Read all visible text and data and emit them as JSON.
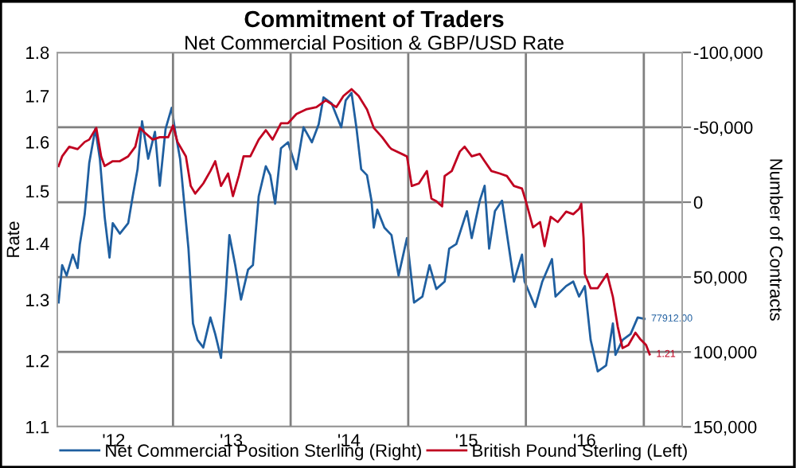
{
  "chart_data": {
    "type": "line",
    "title": "Commitment of Traders",
    "subtitle": "Net Commercial Position & GBP/USD Rate",
    "ylabel": "Rate",
    "y2label": "Number of Contracts",
    "series": [
      {
        "name": "Net Commercial Position Sterling (Right)",
        "color": "#1f5fa0",
        "axis": "y2",
        "x": [
          "2012-01-12",
          "2012-01-23",
          "2012-02-06",
          "2012-02-25",
          "2012-03-11",
          "2012-03-18",
          "2012-04-02",
          "2012-04-16",
          "2012-05-05",
          "2012-05-19",
          "2012-06-03",
          "2012-06-18",
          "2012-06-28",
          "2012-07-20",
          "2012-08-15",
          "2012-08-29",
          "2012-09-13",
          "2012-09-27",
          "2012-10-16",
          "2012-11-06",
          "2012-11-21",
          "2012-12-09",
          "2012-12-28",
          "2013-01-08",
          "2013-01-23",
          "2013-02-18",
          "2013-03-04",
          "2013-03-18",
          "2013-04-05",
          "2013-04-27",
          "2013-05-12",
          "2013-05-30",
          "2013-06-14",
          "2013-06-25",
          "2013-07-13",
          "2013-07-31",
          "2013-08-22",
          "2013-09-06",
          "2013-09-24",
          "2013-10-16",
          "2013-10-30",
          "2013-11-14",
          "2013-12-02",
          "2013-12-24",
          "2014-01-19",
          "2014-02-10",
          "2014-03-08",
          "2014-03-29",
          "2014-04-13",
          "2014-05-08",
          "2014-06-07",
          "2014-06-21",
          "2014-07-09",
          "2014-07-24",
          "2014-08-08",
          "2014-08-26",
          "2014-09-09",
          "2014-09-16",
          "2014-09-27",
          "2014-10-19",
          "2014-11-10",
          "2014-12-02",
          "2014-12-28",
          "2015-01-19",
          "2015-02-14",
          "2015-03-08",
          "2015-03-29",
          "2015-04-24",
          "2015-05-08",
          "2015-05-30",
          "2015-07-02",
          "2015-07-17",
          "2015-08-11",
          "2015-08-26",
          "2015-09-09",
          "2015-09-27",
          "2015-10-19",
          "2015-11-03",
          "2015-11-25",
          "2015-12-20",
          "2015-12-28",
          "2016-01-30",
          "2016-02-21",
          "2016-03-22",
          "2016-04-02",
          "2016-05-05",
          "2016-05-27",
          "2016-06-14",
          "2016-07-02",
          "2016-07-20",
          "2016-08-11",
          "2016-09-06",
          "2016-09-27",
          "2016-10-05",
          "2016-10-27",
          "2016-11-21",
          "2016-12-13",
          "2017-01-03"
        ],
        "values": [
          67000,
          42000,
          49000,
          35000,
          44000,
          28000,
          8000,
          -26000,
          -49000,
          -29000,
          10000,
          37000,
          14000,
          21000,
          14000,
          -4000,
          -22000,
          -54000,
          -29000,
          -47000,
          -11000,
          -49000,
          -63000,
          -47000,
          -29000,
          31000,
          81000,
          92000,
          97000,
          77000,
          88000,
          104000,
          60000,
          22000,
          42000,
          65000,
          45000,
          42000,
          -4000,
          -24000,
          -18000,
          1000,
          -36000,
          -40000,
          -22000,
          -50000,
          -40000,
          -52000,
          -70000,
          -66000,
          -50000,
          -68000,
          -73000,
          -50000,
          -22000,
          -18000,
          -1000,
          17000,
          5000,
          17000,
          22000,
          49000,
          24000,
          67000,
          63000,
          42000,
          58000,
          53000,
          31000,
          28000,
          6000,
          24000,
          -1000,
          -11000,
          31000,
          6000,
          -1000,
          21000,
          53000,
          35000,
          53000,
          70000,
          53000,
          38000,
          63000,
          56000,
          53000,
          63000,
          56000,
          92000,
          113000,
          109000,
          81000,
          102000,
          92000,
          88000,
          77000,
          77912
        ],
        "value_labels": [
          null,
          null,
          null,
          null,
          null,
          null,
          null,
          null,
          null,
          null,
          null,
          null,
          null,
          null,
          null,
          null,
          null,
          null,
          null,
          null,
          null,
          null,
          null,
          null,
          null,
          null,
          null,
          null,
          null,
          null,
          null,
          null,
          null,
          null,
          null,
          null,
          null,
          null,
          null,
          null,
          null,
          null,
          null,
          null,
          null,
          null,
          null,
          null,
          null,
          null,
          null,
          null,
          null,
          null,
          null,
          null,
          null,
          null,
          null,
          null,
          null,
          null,
          null,
          null,
          null,
          null,
          null,
          null,
          null,
          null,
          null,
          null,
          null,
          null,
          null,
          null,
          null,
          null,
          null,
          null,
          null,
          null,
          null,
          null,
          null,
          null,
          null,
          null,
          null,
          null,
          null,
          null,
          null,
          null,
          null,
          null,
          null,
          "77912.00"
        ]
      },
      {
        "name": "British Pound Sterling (Left)",
        "color": "#c00020",
        "x": [
          "2012-01-12",
          "2012-01-23",
          "2012-02-14",
          "2012-03-11",
          "2012-04-02",
          "2012-04-16",
          "2012-05-08",
          "2012-05-23",
          "2012-06-03",
          "2012-06-28",
          "2012-07-20",
          "2012-08-15",
          "2012-09-06",
          "2012-09-20",
          "2012-10-05",
          "2012-10-30",
          "2012-11-21",
          "2012-12-17",
          "2013-01-01",
          "2013-01-15",
          "2013-02-10",
          "2013-02-25",
          "2013-03-11",
          "2013-04-05",
          "2013-04-27",
          "2013-05-12",
          "2013-05-30",
          "2013-06-21",
          "2013-07-06",
          "2013-07-24",
          "2013-08-08",
          "2013-08-29",
          "2013-09-24",
          "2013-10-16",
          "2013-11-06",
          "2013-12-02",
          "2013-12-24",
          "2014-01-19",
          "2014-02-18",
          "2014-03-22",
          "2014-04-20",
          "2014-05-23",
          "2014-06-14",
          "2014-07-09",
          "2014-07-31",
          "2014-08-26",
          "2014-09-16",
          "2014-10-12",
          "2014-11-03",
          "2014-11-10",
          "2014-12-28",
          "2015-01-12",
          "2015-02-03",
          "2015-02-28",
          "2015-03-14",
          "2015-03-29",
          "2015-04-16",
          "2015-04-24",
          "2015-05-16",
          "2015-06-10",
          "2015-06-25",
          "2015-07-17",
          "2015-08-11",
          "2015-08-26",
          "2015-09-16",
          "2015-10-12",
          "2015-11-03",
          "2015-11-25",
          "2015-12-20",
          "2016-01-01",
          "2016-01-23",
          "2016-02-14",
          "2016-02-28",
          "2016-03-18",
          "2016-04-09",
          "2016-05-05",
          "2016-05-27",
          "2016-06-14",
          "2016-06-21",
          "2016-06-28",
          "2016-07-02",
          "2016-07-20",
          "2016-08-11",
          "2016-09-09",
          "2016-09-27",
          "2016-10-12",
          "2016-10-27",
          "2016-11-14",
          "2016-12-06",
          "2016-12-20",
          "2017-01-08",
          "2017-01-19"
        ],
        "values": [
          1.55,
          1.57,
          1.59,
          1.585,
          1.6,
          1.605,
          1.63,
          1.57,
          1.55,
          1.56,
          1.56,
          1.57,
          1.59,
          1.63,
          1.62,
          1.605,
          1.61,
          1.61,
          1.635,
          1.6,
          1.57,
          1.51,
          1.495,
          1.515,
          1.54,
          1.56,
          1.51,
          1.535,
          1.49,
          1.53,
          1.57,
          1.57,
          1.605,
          1.625,
          1.605,
          1.64,
          1.64,
          1.66,
          1.67,
          1.675,
          1.69,
          1.675,
          1.7,
          1.715,
          1.7,
          1.67,
          1.63,
          1.61,
          1.59,
          1.585,
          1.57,
          1.51,
          1.515,
          1.54,
          1.485,
          1.48,
          1.47,
          1.53,
          1.54,
          1.58,
          1.59,
          1.57,
          1.575,
          1.56,
          1.54,
          1.535,
          1.53,
          1.51,
          1.505,
          1.48,
          1.43,
          1.44,
          1.395,
          1.45,
          1.44,
          1.46,
          1.455,
          1.465,
          1.475,
          1.41,
          1.345,
          1.32,
          1.32,
          1.345,
          1.305,
          1.255,
          1.22,
          1.225,
          1.245,
          1.235,
          1.225,
          1.21
        ],
        "value_labels": [
          null,
          null,
          null,
          null,
          null,
          null,
          null,
          null,
          null,
          null,
          null,
          null,
          null,
          null,
          null,
          null,
          null,
          null,
          null,
          null,
          null,
          null,
          null,
          null,
          null,
          null,
          null,
          null,
          null,
          null,
          null,
          null,
          null,
          null,
          null,
          null,
          null,
          null,
          null,
          null,
          null,
          null,
          null,
          null,
          null,
          null,
          null,
          null,
          null,
          null,
          null,
          null,
          null,
          null,
          null,
          null,
          null,
          null,
          null,
          null,
          null,
          null,
          null,
          null,
          null,
          null,
          null,
          null,
          null,
          null,
          null,
          null,
          null,
          null,
          null,
          null,
          null,
          null,
          null,
          null,
          null,
          null,
          null,
          null,
          null,
          null,
          null,
          null,
          null,
          null,
          null,
          "1.21"
        ]
      }
    ],
    "log": "y",
    "xlim": [
      "2012-01-08",
      "2017-04-30"
    ],
    "xticks": [
      {
        "value": "2012-07-01",
        "label": "'12"
      },
      {
        "value": "2013-01-01",
        "label": null
      },
      {
        "value": "2013-07-01",
        "label": "'13"
      },
      {
        "value": "2014-01-01",
        "label": null
      },
      {
        "value": "2014-07-01",
        "label": "'14"
      },
      {
        "value": "2015-01-01",
        "label": null
      },
      {
        "value": "2015-07-01",
        "label": "'15"
      },
      {
        "value": "2016-01-01",
        "label": null
      },
      {
        "value": "2016-07-01",
        "label": "'16"
      },
      {
        "value": "2017-01-01",
        "label": null
      }
    ],
    "ylim": [
      1.1,
      1.8
    ],
    "yticks": [
      1.1,
      1.2,
      1.3,
      1.4,
      1.5,
      1.6,
      1.7,
      1.8
    ],
    "y2lim": [
      150000,
      -100000
    ],
    "y2ticks": [
      {
        "value": -100000,
        "label": "-100,000"
      },
      {
        "value": -50000,
        "label": "-50,000"
      },
      0,
      {
        "value": 50000,
        "label": "50,000"
      },
      {
        "value": 100000,
        "label": "100,000"
      },
      {
        "value": 150000,
        "label": "150,000"
      }
    ],
    "grid": true,
    "legend": "bottom",
    "line_style": "solid",
    "marker": "none"
  }
}
